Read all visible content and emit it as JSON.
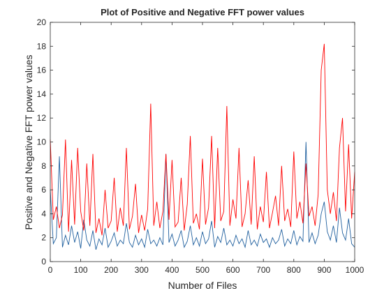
{
  "chart_data": {
    "type": "line",
    "title": "Plot of Positive and Negative FFT power values",
    "x_label": "Number of Files",
    "y_label": "Positive and Negative FFT power values",
    "x": [
      0,
      10,
      20,
      30,
      40,
      50,
      60,
      70,
      80,
      90,
      100,
      110,
      120,
      130,
      140,
      150,
      160,
      170,
      180,
      190,
      200,
      210,
      220,
      230,
      240,
      250,
      260,
      270,
      280,
      290,
      300,
      310,
      320,
      330,
      340,
      350,
      360,
      370,
      380,
      390,
      400,
      410,
      420,
      430,
      440,
      450,
      460,
      470,
      480,
      490,
      500,
      510,
      520,
      530,
      540,
      550,
      560,
      570,
      580,
      590,
      600,
      610,
      620,
      630,
      640,
      650,
      660,
      670,
      680,
      690,
      700,
      710,
      720,
      730,
      740,
      750,
      760,
      770,
      780,
      790,
      800,
      810,
      820,
      830,
      840,
      850,
      860,
      870,
      880,
      890,
      900,
      910,
      920,
      930,
      940,
      950,
      960,
      970,
      980,
      990,
      1000
    ],
    "series": [
      {
        "color": "#1f5f9e",
        "values": [
          6.0,
          1.5,
          2.0,
          8.8,
          1.2,
          2.2,
          1.4,
          3.0,
          1.6,
          2.5,
          1.1,
          3.5,
          1.8,
          1.3,
          2.6,
          1.0,
          1.9,
          1.4,
          2.8,
          1.2,
          1.7,
          2.4,
          1.3,
          1.8,
          1.5,
          3.2,
          1.6,
          1.2,
          2.2,
          1.4,
          1.9,
          1.2,
          2.7,
          1.5,
          1.8,
          1.3,
          2.0,
          1.4,
          9.0,
          1.6,
          2.3,
          1.3,
          1.8,
          2.6,
          1.2,
          1.7,
          3.0,
          1.4,
          2.0,
          1.3,
          2.5,
          1.5,
          1.9,
          3.4,
          1.2,
          2.1,
          1.6,
          2.8,
          1.4,
          1.8,
          1.3,
          2.2,
          1.5,
          1.9,
          1.2,
          2.6,
          1.4,
          1.8,
          1.3,
          2.3,
          1.6,
          1.9,
          1.2,
          2.0,
          1.5,
          1.8,
          2.7,
          1.3,
          1.9,
          1.5,
          2.6,
          1.4,
          2.1,
          1.7,
          10.0,
          1.6,
          2.4,
          1.5,
          2.2,
          4.0,
          5.0,
          2.5,
          1.8,
          3.0,
          1.6,
          4.5,
          2.4,
          1.8,
          3.6,
          1.5,
          1.2
        ]
      },
      {
        "color": "#ff0000",
        "values": [
          10.2,
          3.5,
          4.6,
          2.8,
          3.9,
          10.2,
          2.5,
          8.5,
          3.1,
          9.5,
          4.2,
          2.6,
          8.2,
          3.0,
          9.0,
          2.4,
          3.6,
          2.2,
          6.0,
          2.8,
          3.4,
          7.0,
          2.5,
          4.5,
          3.0,
          9.5,
          2.7,
          3.8,
          6.5,
          2.4,
          3.9,
          2.6,
          4.4,
          13.2,
          3.0,
          5.0,
          2.8,
          4.2,
          9.0,
          3.5,
          8.5,
          2.9,
          3.3,
          7.0,
          2.6,
          4.8,
          10.5,
          3.2,
          4.0,
          2.7,
          8.6,
          3.1,
          4.5,
          10.5,
          2.8,
          9.5,
          3.4,
          4.2,
          13.0,
          3.0,
          5.2,
          3.6,
          9.5,
          2.9,
          4.0,
          6.8,
          3.1,
          8.8,
          2.7,
          4.6,
          3.3,
          7.5,
          2.8,
          4.1,
          5.5,
          3.0,
          8.0,
          3.4,
          4.4,
          2.9,
          9.2,
          3.6,
          5.0,
          3.2,
          8.2,
          3.8,
          4.6,
          3.0,
          5.6,
          16.0,
          18.2,
          6.0,
          4.0,
          5.8,
          3.4,
          9.5,
          12.0,
          4.2,
          9.8,
          3.6,
          7.5
        ]
      }
    ],
    "xlim": [
      0,
      1000
    ],
    "xticks": [
      0,
      100,
      200,
      300,
      400,
      500,
      600,
      700,
      800,
      900,
      1000
    ],
    "ylim": [
      0,
      20
    ],
    "yticks": [
      0,
      2,
      4,
      6,
      8,
      10,
      12,
      14,
      16,
      18,
      20
    ]
  }
}
